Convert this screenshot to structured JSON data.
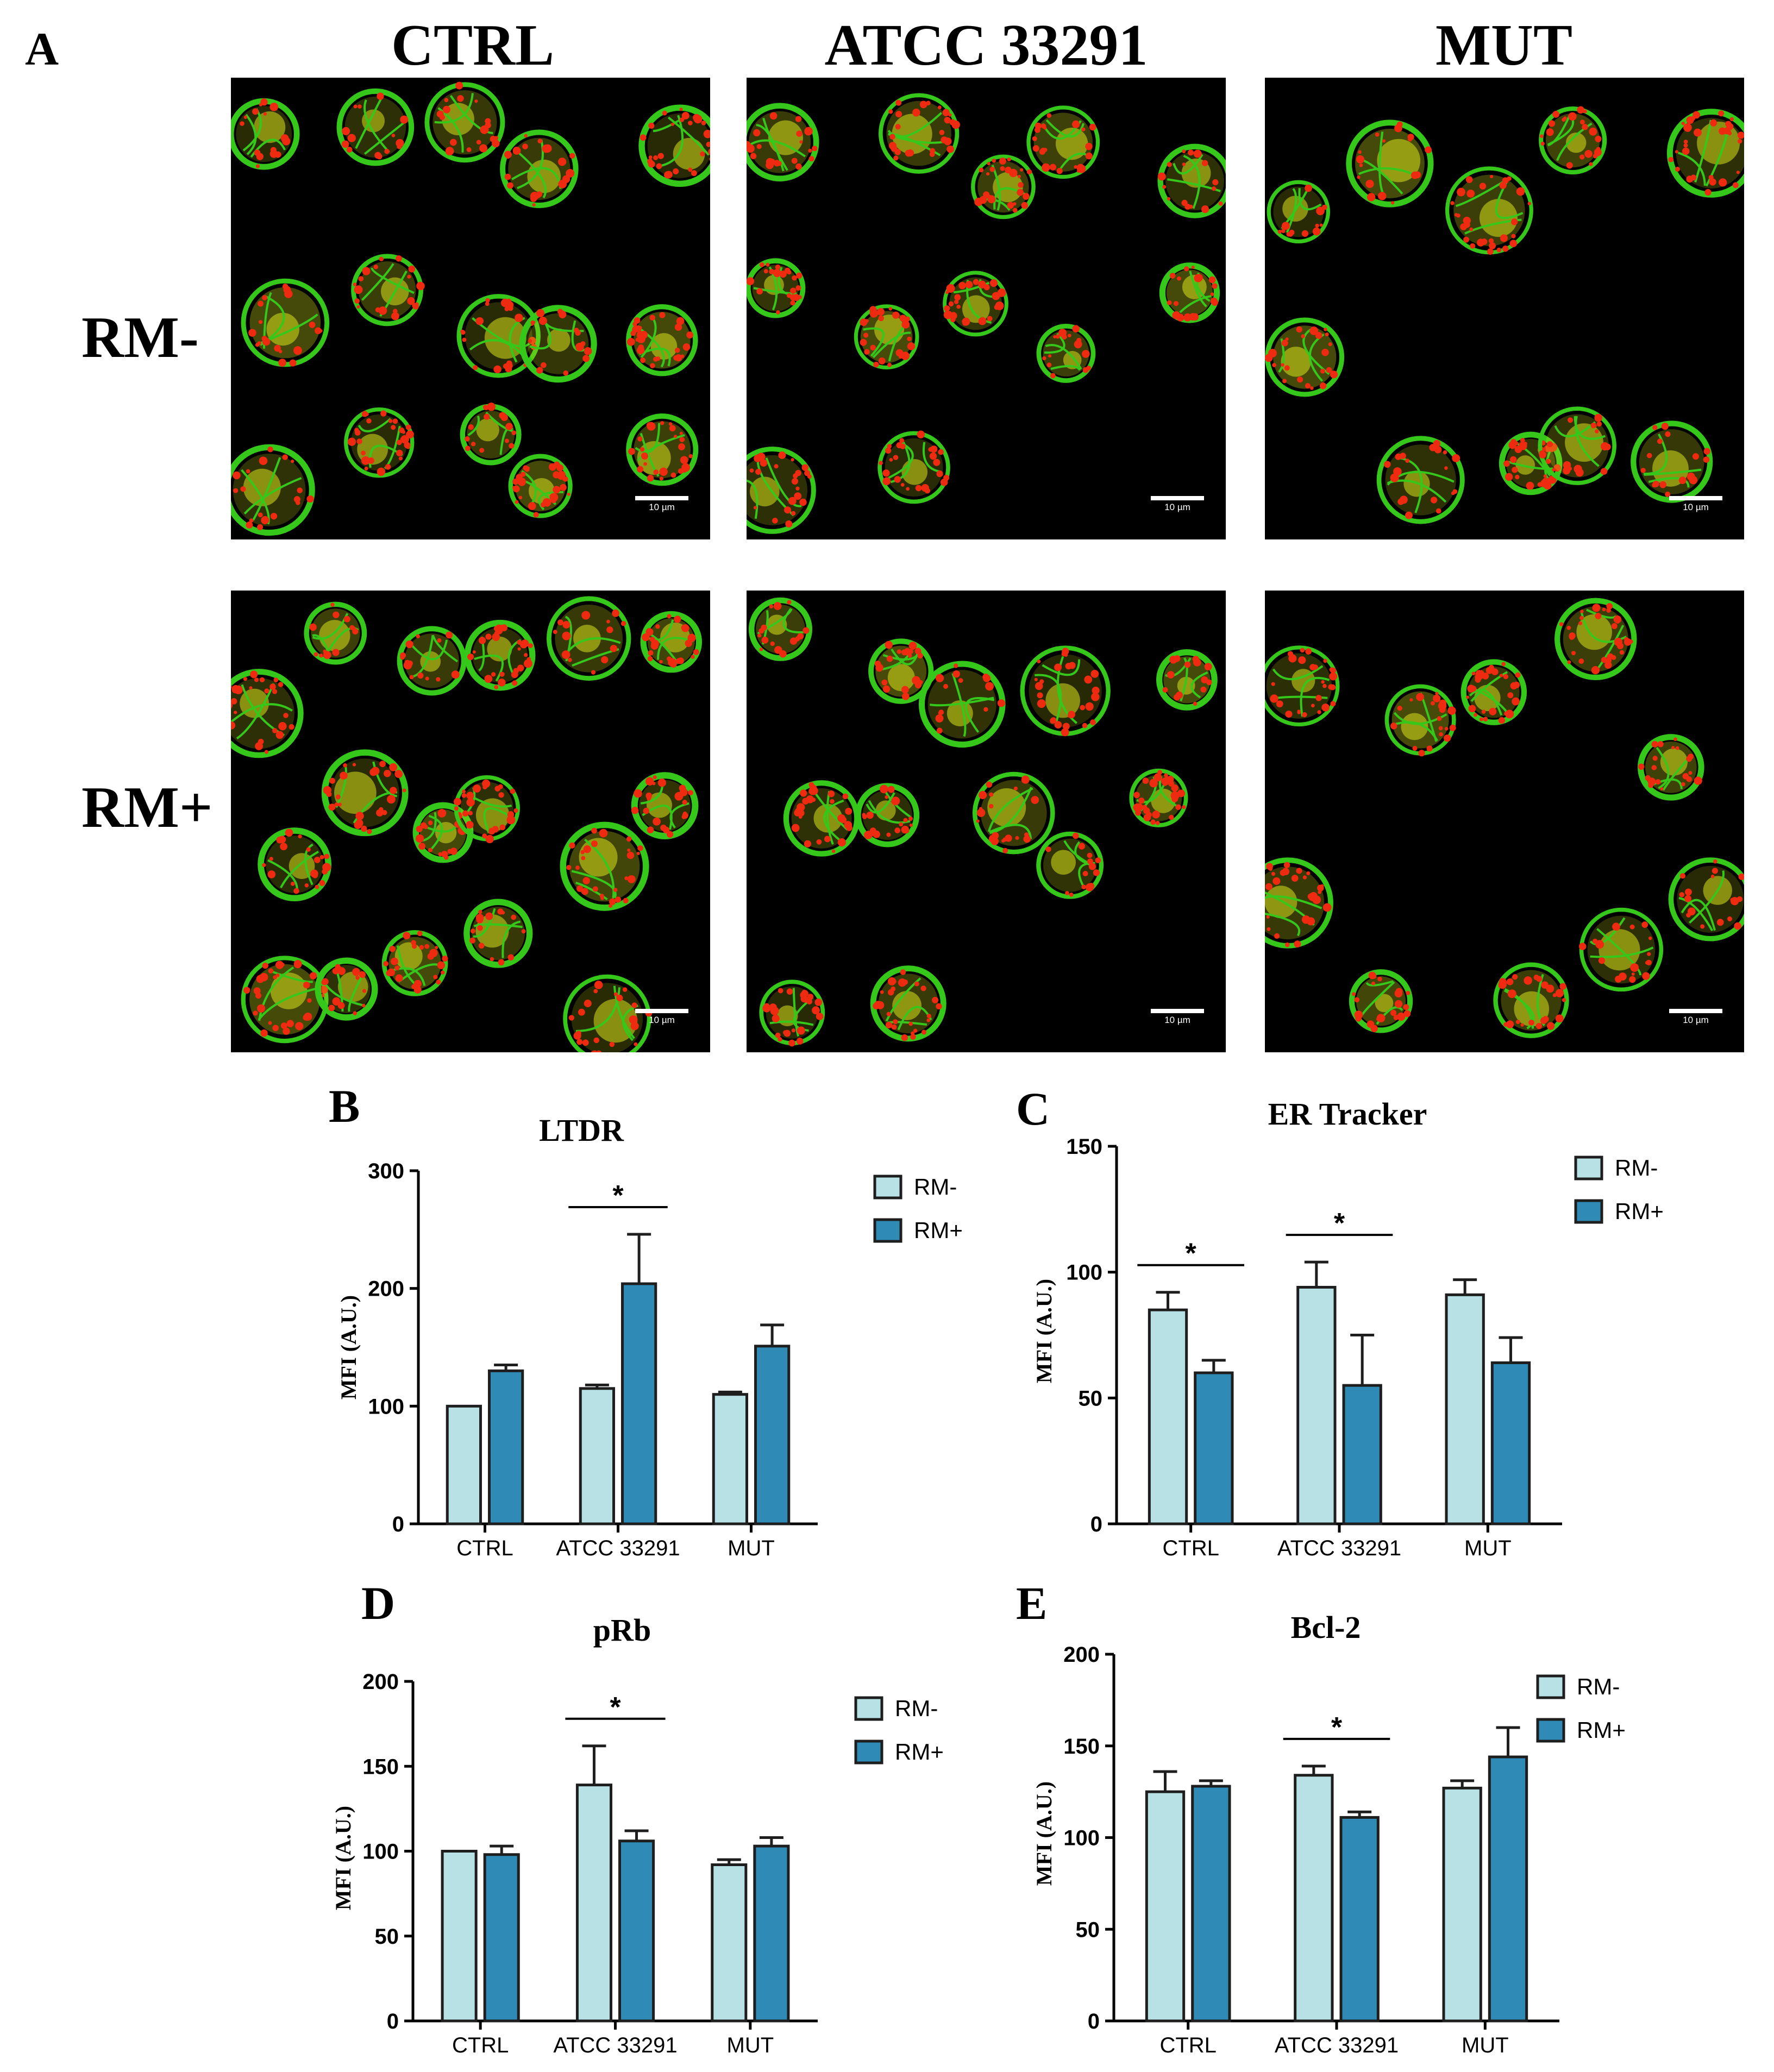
{
  "figure": {
    "panel_a_letter": "A",
    "columns": [
      "CTRL",
      "ATCC 33291",
      "MUT"
    ],
    "rows": [
      "RM-",
      "RM+"
    ],
    "scale_bar_label": "10 µm"
  },
  "colors": {
    "rm_minus": "#b7e1e4",
    "rm_plus": "#2f8bb6",
    "cell_green": "#35c81a",
    "cell_red": "#ee2a10",
    "cell_yellow": "#d7e21c"
  },
  "chart_data": [
    {
      "panel": "B",
      "type": "bar",
      "title": "LTDR",
      "ylabel": "MFI (A.U.)",
      "xlabel": "",
      "categories": [
        "CTRL",
        "ATCC 33291",
        "MUT"
      ],
      "ylim": [
        0,
        300
      ],
      "yticks": [
        0,
        100,
        200,
        300
      ],
      "series": [
        {
          "name": "RM-",
          "values": [
            100,
            115,
            110
          ],
          "errors": [
            0,
            3,
            2
          ]
        },
        {
          "name": "RM+",
          "values": [
            130,
            204,
            151
          ],
          "errors": [
            5,
            42,
            18
          ]
        }
      ],
      "significance": [
        {
          "category": "ATCC 33291",
          "label": "*"
        }
      ],
      "legend_position": "top-right"
    },
    {
      "panel": "C",
      "type": "bar",
      "title": "ER Tracker",
      "ylabel": "MFI (A.U.)",
      "xlabel": "",
      "categories": [
        "CTRL",
        "ATCC 33291",
        "MUT"
      ],
      "ylim": [
        0,
        150
      ],
      "yticks": [
        0,
        50,
        100,
        150
      ],
      "series": [
        {
          "name": "RM-",
          "values": [
            85,
            94,
            91
          ],
          "errors": [
            7,
            10,
            6
          ]
        },
        {
          "name": "RM+",
          "values": [
            60,
            55,
            64
          ],
          "errors": [
            5,
            20,
            10
          ]
        }
      ],
      "significance": [
        {
          "category": "CTRL",
          "label": "*"
        },
        {
          "category": "ATCC 33291",
          "label": "*"
        }
      ],
      "legend_position": "top-right"
    },
    {
      "panel": "D",
      "type": "bar",
      "title": "pRb",
      "ylabel": "MFI (A.U.)",
      "xlabel": "",
      "categories": [
        "CTRL",
        "ATCC 33291",
        "MUT"
      ],
      "ylim": [
        0,
        200
      ],
      "yticks": [
        0,
        50,
        100,
        150,
        200
      ],
      "series": [
        {
          "name": "RM-",
          "values": [
            100,
            139,
            92
          ],
          "errors": [
            0,
            23,
            3
          ]
        },
        {
          "name": "RM+",
          "values": [
            98,
            106,
            103
          ],
          "errors": [
            5,
            6,
            5
          ]
        }
      ],
      "significance": [
        {
          "category": "ATCC 33291",
          "label": "*"
        }
      ],
      "legend_position": "top-right"
    },
    {
      "panel": "E",
      "type": "bar",
      "title": "Bcl-2",
      "ylabel": "MFI (A.U.)",
      "xlabel": "",
      "categories": [
        "CTRL",
        "ATCC 33291",
        "MUT"
      ],
      "ylim": [
        0,
        200
      ],
      "yticks": [
        0,
        50,
        100,
        150,
        200
      ],
      "series": [
        {
          "name": "RM-",
          "values": [
            125,
            134,
            127
          ],
          "errors": [
            11,
            5,
            4
          ]
        },
        {
          "name": "RM+",
          "values": [
            128,
            111,
            144
          ],
          "errors": [
            3,
            3,
            16
          ]
        }
      ],
      "significance": [
        {
          "category": "ATCC 33291",
          "label": "*"
        }
      ],
      "legend_position": "top-right"
    }
  ]
}
